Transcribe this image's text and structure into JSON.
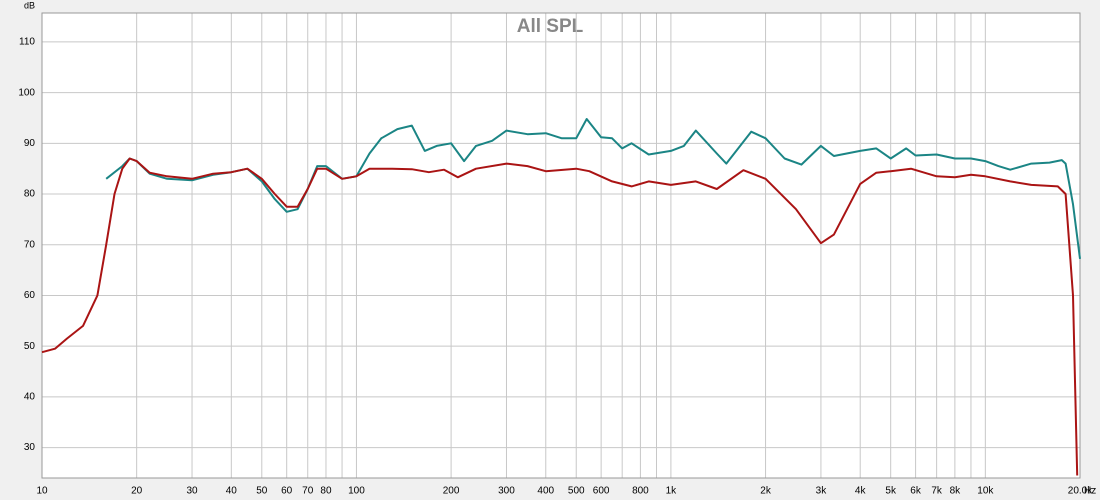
{
  "chart_data": {
    "type": "line",
    "title": "All SPL",
    "xlabel": "Hz",
    "ylabel": "dB",
    "xscale": "log",
    "grid": true,
    "xlim": [
      10,
      20000
    ],
    "ylim": [
      24,
      115.7
    ],
    "xticks": [
      10,
      20,
      30,
      40,
      50,
      60,
      70,
      80,
      100,
      200,
      300,
      400,
      500,
      600,
      800,
      {
        "value": 1000,
        "label": "1k"
      },
      {
        "value": 2000,
        "label": "2k"
      },
      {
        "value": 3000,
        "label": "3k"
      },
      {
        "value": 4000,
        "label": "4k"
      },
      {
        "value": 5000,
        "label": "5k"
      },
      {
        "value": 6000,
        "label": "6k"
      },
      {
        "value": 7000,
        "label": "7k"
      },
      {
        "value": 8000,
        "label": "8k"
      },
      {
        "value": 10000,
        "label": "10k"
      },
      {
        "value": 20000,
        "label": "20.0k"
      }
    ],
    "xminorticks": [
      90,
      700,
      900,
      9000
    ],
    "yticks": [
      30,
      40,
      50,
      60,
      70,
      80,
      90,
      100,
      110
    ],
    "series": [
      {
        "color": "#1b8585",
        "x": [
          16,
          18,
          19,
          20,
          22,
          25,
          30,
          35,
          40,
          45,
          50,
          55,
          60,
          65,
          70,
          75,
          80,
          90,
          100,
          110,
          120,
          135,
          150,
          165,
          180,
          200,
          220,
          240,
          270,
          300,
          350,
          400,
          450,
          500,
          540,
          600,
          650,
          700,
          750,
          850,
          1000,
          1100,
          1200,
          1400,
          1500,
          1800,
          2000,
          2300,
          2600,
          3000,
          3300,
          4000,
          4500,
          5000,
          5600,
          6000,
          7000,
          8000,
          9000,
          10000,
          11000,
          12000,
          14000,
          16000,
          17500,
          18000,
          19000,
          20000
        ],
        "values": [
          83,
          85.5,
          87,
          86.5,
          84,
          83,
          82.7,
          83.8,
          84.3,
          85,
          82.5,
          79,
          76.5,
          77,
          81,
          85.5,
          85.5,
          83,
          83.5,
          88,
          91,
          92.8,
          93.5,
          88.5,
          89.5,
          90,
          86.5,
          89.5,
          90.5,
          92.5,
          91.8,
          92,
          91,
          91,
          94.8,
          91.2,
          91,
          89,
          90,
          87.8,
          88.5,
          89.5,
          92.5,
          88,
          86,
          92.3,
          91,
          87,
          85.8,
          89.5,
          87.5,
          88.5,
          89,
          87,
          89,
          87.6,
          87.8,
          87,
          87,
          86.5,
          85.5,
          84.8,
          86,
          86.2,
          86.7,
          86,
          78,
          67.2
        ]
      },
      {
        "color": "#aa1414",
        "x": [
          10,
          11,
          12,
          13.5,
          15,
          16,
          17,
          18,
          19,
          20,
          22,
          25,
          30,
          35,
          40,
          45,
          50,
          55,
          60,
          65,
          70,
          75,
          80,
          90,
          100,
          110,
          130,
          150,
          170,
          190,
          210,
          240,
          300,
          350,
          400,
          500,
          550,
          650,
          750,
          850,
          1000,
          1200,
          1400,
          1700,
          2000,
          2500,
          3000,
          3300,
          4000,
          4500,
          5000,
          5800,
          7000,
          8000,
          9000,
          10000,
          12000,
          14000,
          17000,
          18000,
          19000,
          19600
        ],
        "values": [
          48.8,
          49.5,
          51.5,
          54,
          60,
          70,
          80,
          85,
          87,
          86.5,
          84.2,
          83.5,
          83,
          84,
          84.3,
          85,
          83,
          80,
          77.5,
          77.5,
          81,
          85,
          85,
          83,
          83.5,
          85,
          85,
          84.9,
          84.3,
          84.8,
          83.3,
          85,
          86,
          85.5,
          84.5,
          85,
          84.5,
          82.5,
          81.5,
          82.5,
          81.8,
          82.5,
          81,
          84.7,
          83,
          77,
          70.3,
          72,
          82,
          84.2,
          84.5,
          85,
          83.5,
          83.3,
          83.8,
          83.5,
          82.5,
          81.8,
          81.5,
          80,
          60,
          24.5
        ]
      }
    ]
  }
}
